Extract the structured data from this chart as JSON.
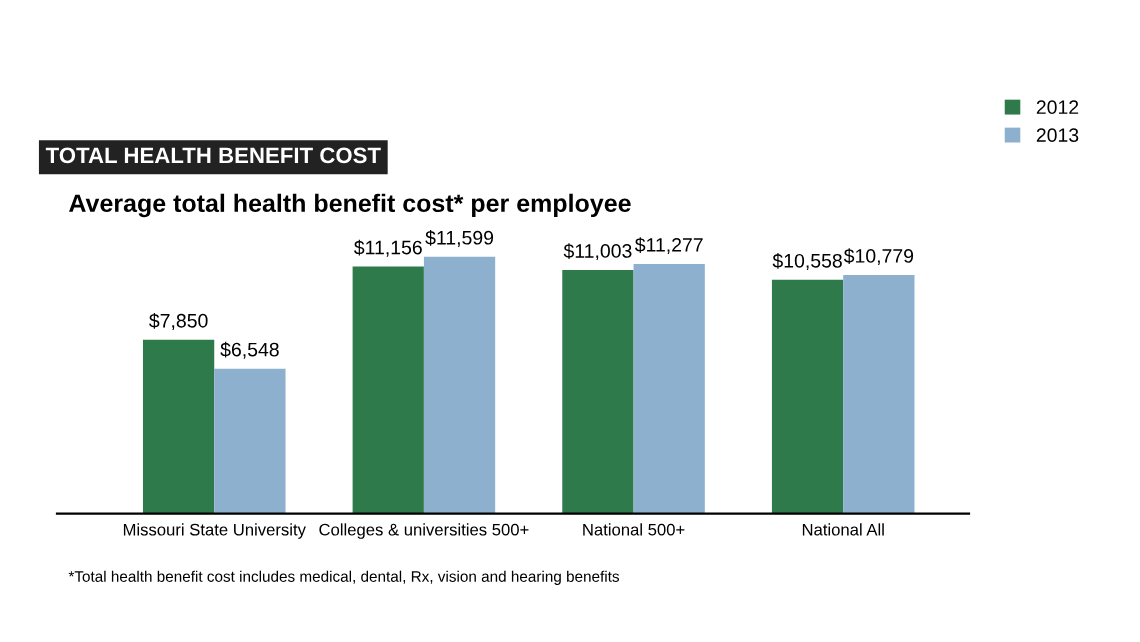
{
  "chart_data": {
    "type": "bar",
    "title": "TOTAL HEALTH BENEFIT COST",
    "subtitle": "Average total health benefit cost* per employee",
    "categories": [
      "Missouri State University",
      "Colleges & universities 500+",
      "National 500+",
      "National All"
    ],
    "series": [
      {
        "name": "2012",
        "color": "#2f7a4a",
        "values": [
          7850,
          11156,
          11003,
          10558
        ],
        "value_labels": [
          "$7,850",
          "$11,156",
          "$11,003",
          "$10,558"
        ]
      },
      {
        "name": "2013",
        "color": "#8eb0cf",
        "values": [
          6548,
          11599,
          11277,
          10779
        ],
        "value_labels": [
          "$6,548",
          "$11,599",
          "$11,277",
          "$10,779"
        ]
      }
    ],
    "annotations": [
      "*Total health benefit cost includes medical, dental, Rx, vision and hearing benefits"
    ],
    "legend": "top right",
    "grid": false
  }
}
